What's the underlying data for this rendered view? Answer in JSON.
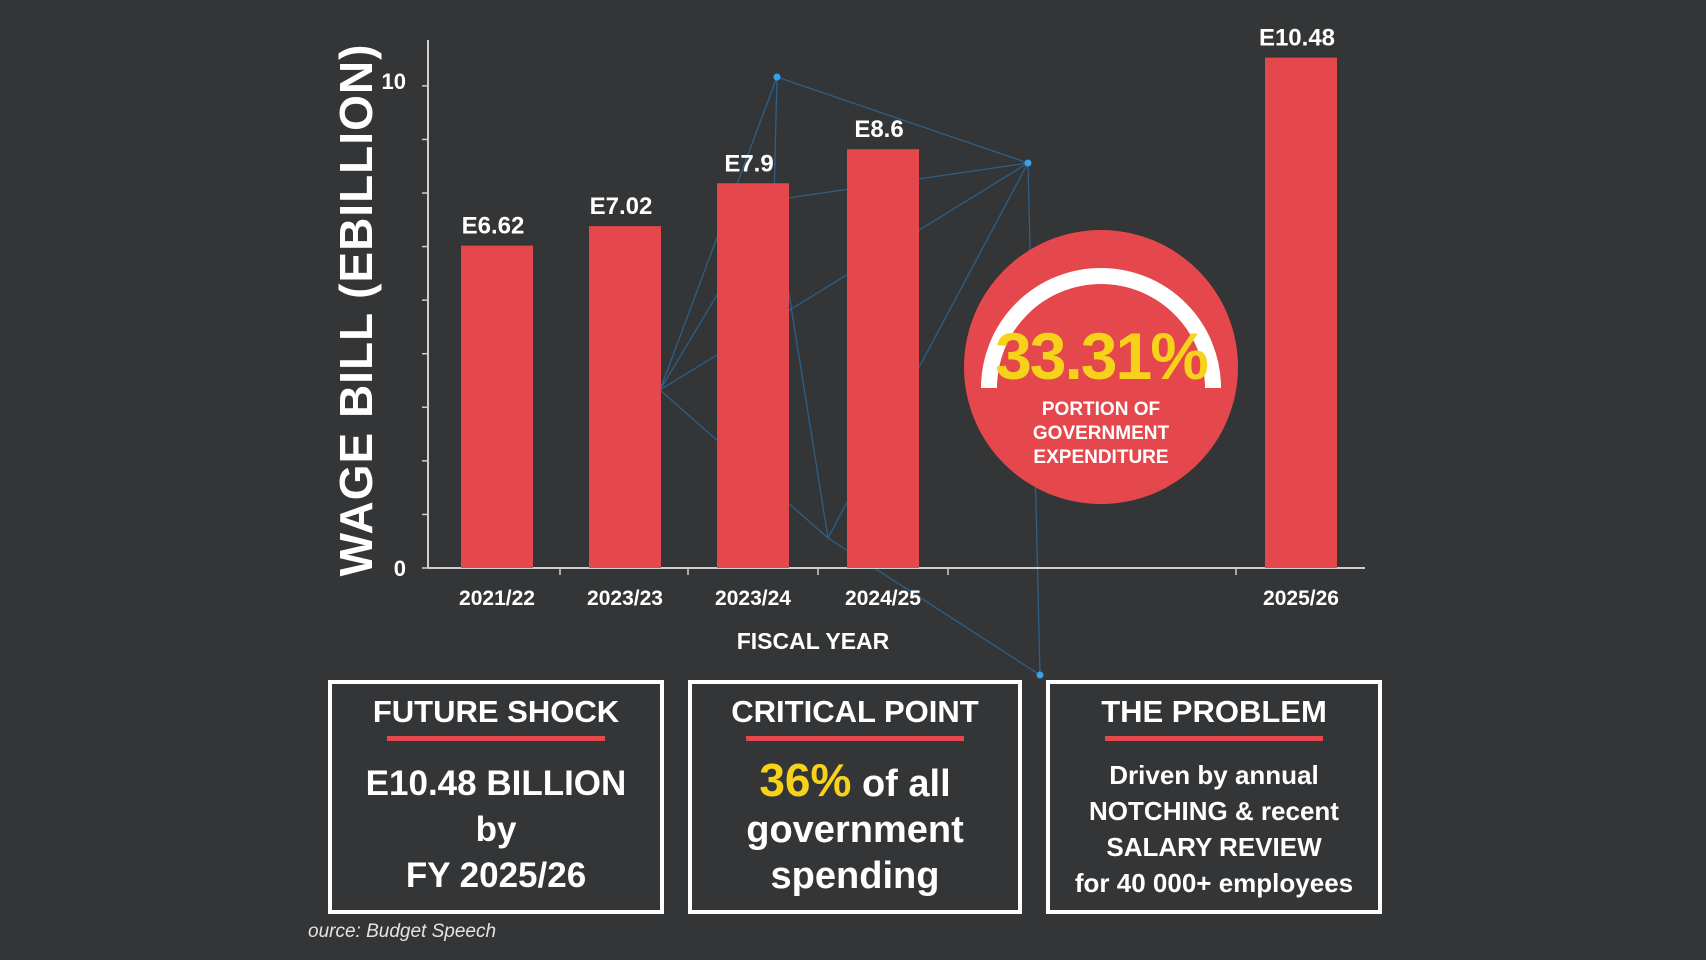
{
  "chart_data": {
    "type": "bar",
    "title": "",
    "xlabel": "FISCAL YEAR",
    "ylabel": "WAGE BILL (EBILLION)",
    "ylim": [
      0,
      11
    ],
    "yticks": [
      0,
      10
    ],
    "categories": [
      "2021/22",
      "2023/23",
      "2023/24",
      "2024/25",
      "2025/26"
    ],
    "values": [
      6.62,
      7.02,
      7.9,
      8.6,
      10.48
    ],
    "value_labels": [
      "E6.62",
      "E7.02",
      "E7.9",
      "E8.6",
      "E10.48"
    ],
    "grid": false
  },
  "highlight": {
    "percent_text": "33.31%",
    "percent_value": 33.31,
    "caption": [
      "PORTION OF",
      "GOVERNMENT",
      "EXPENDITURE"
    ]
  },
  "boxes": {
    "future": {
      "title": "FUTURE SHOCK",
      "lines": [
        "E10.48 BILLION",
        "by",
        "FY 2025/26"
      ]
    },
    "critical": {
      "title": "CRITICAL POINT",
      "highlight": "36%",
      "line1_rest": "of all",
      "line2": "government",
      "line3": "spending"
    },
    "problem": {
      "title": "THE PROBLEM",
      "lines": [
        "Driven by annual",
        "NOTCHING & recent",
        "SALARY REVIEW",
        "for 40 000+ employees"
      ]
    }
  },
  "source": "ource: Budget Speech",
  "colors": {
    "background": "#343536",
    "bar": "#e5484c",
    "accent_yellow": "#f6d21a",
    "text": "#ffffff",
    "network_line": "#2c6a9c",
    "network_node": "#3aa0e6"
  }
}
